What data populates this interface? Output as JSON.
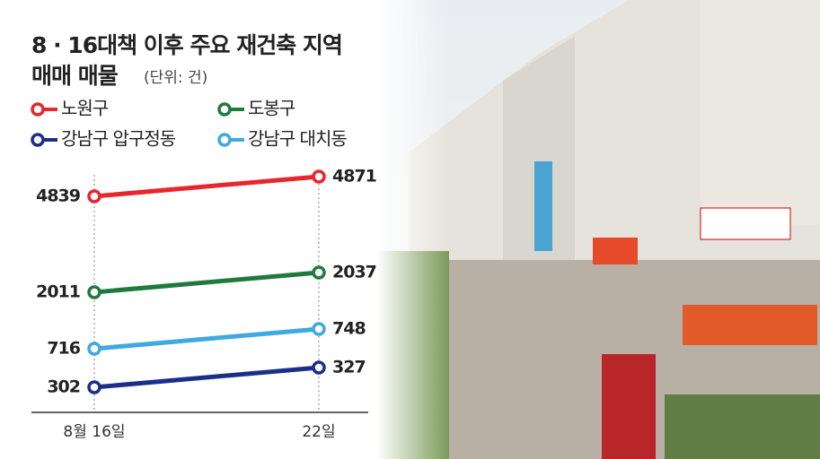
{
  "chart_data": {
    "type": "line",
    "title": "8 · 16대책 이후 주요 재건축 지역",
    "subtitle": "매매 매물",
    "unit": "(단위: 건)",
    "categories": [
      "8월 16일",
      "22일"
    ],
    "series": [
      {
        "name": "노원구",
        "color": "#e8262b",
        "values": [
          4839,
          4871
        ]
      },
      {
        "name": "도봉구",
        "color": "#1f7a3c",
        "values": [
          2011,
          2037
        ]
      },
      {
        "name": "강남구 압구정동",
        "color": "#1b2f8a",
        "values": [
          302,
          327
        ]
      },
      {
        "name": "강남구 대치동",
        "color": "#3fa9e0",
        "values": [
          716,
          748
        ]
      }
    ]
  }
}
